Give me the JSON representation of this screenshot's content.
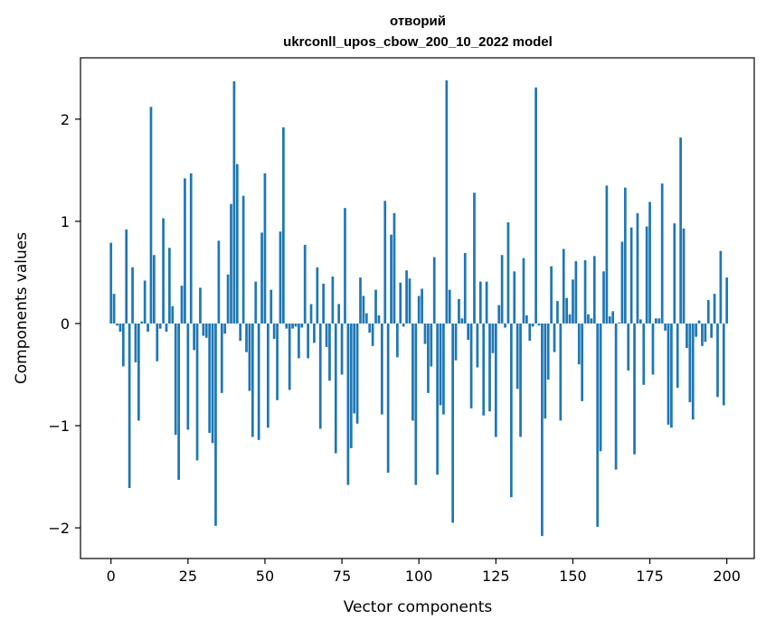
{
  "chart_data": {
    "type": "bar",
    "title": "отворий",
    "subtitle": "ukrconll_upos_cbow_200_10_2022 model",
    "xlabel": "Vector components",
    "ylabel": "Components values",
    "xlim": [
      -9.9,
      208.9
    ],
    "ylim": [
      -2.3,
      2.6
    ],
    "xticks": [
      0,
      25,
      50,
      75,
      100,
      125,
      150,
      175,
      200
    ],
    "xtick_labels": [
      "0",
      "25",
      "50",
      "75",
      "100",
      "125",
      "150",
      "175",
      "200"
    ],
    "yticks": [
      -2,
      -1,
      0,
      1,
      2
    ],
    "ytick_labels": [
      "−2",
      "−1",
      "0",
      "1",
      "2"
    ],
    "grid": false,
    "bar_color": "#1f77b4",
    "values": [
      0.79,
      0.29,
      -0.02,
      -0.08,
      -0.42,
      0.92,
      -1.61,
      0.55,
      -0.38,
      -0.95,
      0.02,
      0.42,
      -0.08,
      2.12,
      0.67,
      -0.37,
      -0.05,
      1.03,
      -0.08,
      0.74,
      0.17,
      -1.09,
      -1.53,
      0.37,
      1.42,
      -1.04,
      1.47,
      -0.26,
      -1.34,
      0.35,
      -0.12,
      -0.14,
      -1.07,
      -1.17,
      -1.98,
      0.81,
      -0.68,
      -0.1,
      0.48,
      1.17,
      2.37,
      1.56,
      -0.17,
      1.25,
      -0.28,
      -0.66,
      -1.11,
      0.41,
      -1.14,
      0.89,
      1.47,
      -1.02,
      0.33,
      -0.15,
      -0.75,
      0.9,
      1.92,
      -0.05,
      -0.65,
      -0.05,
      -0.03,
      -0.34,
      -0.04,
      0.77,
      -0.34,
      0.19,
      -0.19,
      0.55,
      -1.03,
      0.39,
      -0.23,
      -0.56,
      0.46,
      -1.27,
      0.19,
      -0.5,
      1.13,
      -1.58,
      -1.22,
      -0.88,
      -0.98,
      0.45,
      0.27,
      0.1,
      -0.09,
      -0.22,
      0.33,
      0.08,
      -0.89,
      1.2,
      -1.46,
      0.87,
      1.08,
      -0.33,
      0.4,
      -0.03,
      0.52,
      0.44,
      -0.95,
      -1.58,
      0.27,
      0.34,
      -0.2,
      -0.68,
      -0.42,
      0.65,
      -1.48,
      -0.8,
      -0.89,
      2.38,
      0.33,
      -1.95,
      -0.36,
      0.24,
      0.05,
      0.69,
      -0.16,
      -0.83,
      1.28,
      -0.43,
      0.41,
      -0.9,
      0.41,
      -0.86,
      -0.29,
      -1.11,
      0.18,
      0.67,
      -0.04,
      0.99,
      -1.7,
      0.51,
      -0.64,
      -1.11,
      0.64,
      0.08,
      -0.17,
      -0.03,
      2.31,
      -0.02,
      -2.08,
      -0.93,
      -0.55,
      0.56,
      -0.28,
      0.22,
      -0.95,
      0.73,
      0.25,
      0.09,
      0.43,
      0.61,
      -0.4,
      -0.76,
      0.62,
      0.09,
      0.05,
      0.66,
      -1.99,
      -1.25,
      0.51,
      1.35,
      0.07,
      0.12,
      -1.43,
      0.01,
      0.8,
      1.33,
      -0.46,
      0.94,
      -1.28,
      1.08,
      0.04,
      -0.6,
      0.95,
      1.19,
      -0.5,
      0.05,
      0.05,
      1.37,
      -0.07,
      -0.99,
      -1.02,
      0.98,
      -0.63,
      1.82,
      0.93,
      -0.24,
      -0.77,
      -0.94,
      -0.13,
      0.03,
      -0.22,
      -0.18,
      0.23,
      -0.14,
      0.29,
      -0.72,
      0.71,
      -0.8,
      0.45
    ]
  }
}
